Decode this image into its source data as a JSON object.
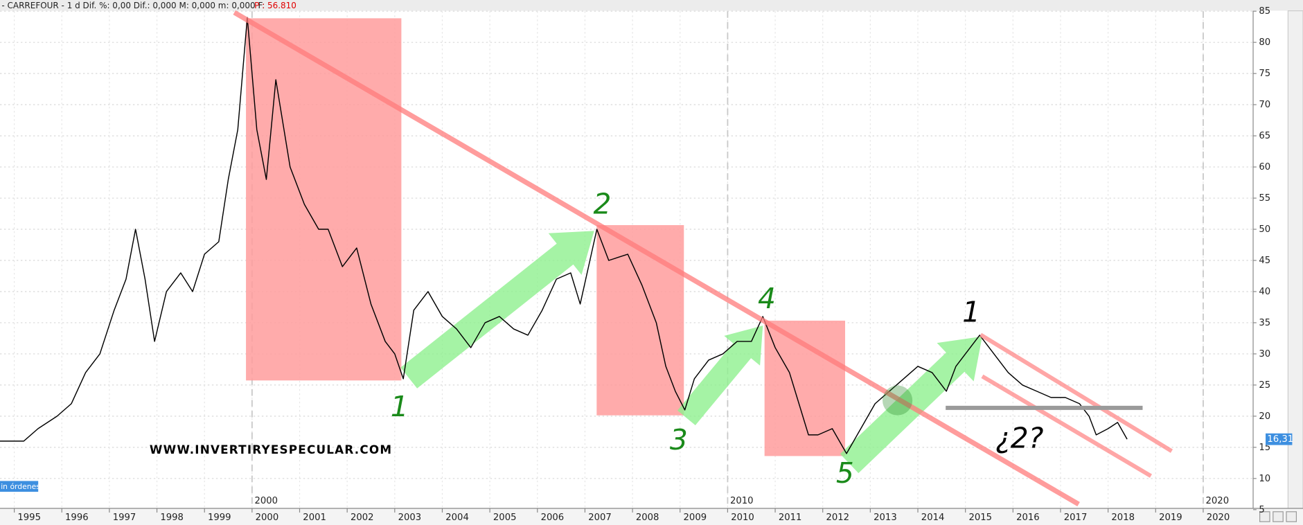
{
  "chart_data": {
    "type": "line",
    "header": "- CARREFOUR -  1 d  Dif. %: 0,00  Dif.: 0,000  M: 0,000  m: 0,000  F:",
    "header_price": "P : 56.810",
    "watermark": "WWW.INVERTIRYESPECULAR.COM",
    "status_label": "in órdenes",
    "last_price_label": "16,31",
    "annotations": [
      "1",
      "2",
      "3",
      "4",
      "5",
      "1",
      "¿2?"
    ],
    "color": "#000000",
    "x": [
      1994.7,
      1995.2,
      1995.5,
      1995.9,
      1996.2,
      1996.5,
      1996.8,
      1997.1,
      1997.35,
      1997.55,
      1997.75,
      1997.95,
      1998.2,
      1998.5,
      1998.75,
      1999.0,
      1999.3,
      1999.5,
      1999.7,
      1999.9,
      2000.1,
      2000.3,
      2000.5,
      2000.8,
      2001.1,
      2001.4,
      2001.6,
      2001.9,
      2002.2,
      2002.5,
      2002.8,
      2003.0,
      2003.18,
      2003.4,
      2003.7,
      2004.0,
      2004.3,
      2004.6,
      2004.9,
      2005.2,
      2005.5,
      2005.8,
      2006.1,
      2006.4,
      2006.7,
      2006.9,
      2007.25,
      2007.5,
      2007.9,
      2008.2,
      2008.5,
      2008.7,
      2008.9,
      2009.1,
      2009.3,
      2009.6,
      2009.9,
      2010.2,
      2010.5,
      2010.74,
      2011.0,
      2011.3,
      2011.5,
      2011.7,
      2011.9,
      2012.2,
      2012.5,
      2012.8,
      2013.1,
      2013.4,
      2013.7,
      2014.0,
      2014.3,
      2014.6,
      2014.8,
      2015.0,
      2015.3,
      2015.6,
      2015.9,
      2016.2,
      2016.5,
      2016.8,
      2017.1,
      2017.4,
      2017.6,
      2017.75,
      2018.0,
      2018.2,
      2018.4
    ],
    "values": [
      16,
      16,
      18,
      20,
      22,
      27,
      30,
      37,
      42,
      50,
      42,
      32,
      40,
      43,
      40,
      46,
      48,
      58,
      66,
      84,
      66,
      58,
      74,
      60,
      54,
      50,
      50,
      44,
      47,
      38,
      32,
      30,
      26,
      37,
      40,
      36,
      34,
      31,
      35,
      36,
      34,
      33,
      37,
      42,
      43,
      38,
      50,
      45,
      46,
      41,
      35,
      28,
      24,
      21,
      26,
      29,
      30,
      32,
      32,
      36,
      31,
      27,
      22,
      17,
      17,
      18,
      14,
      18,
      22,
      24,
      26,
      28,
      27,
      24,
      28,
      30,
      33,
      30,
      27,
      25,
      24,
      23,
      23,
      22,
      20,
      17,
      18,
      19,
      16.3
    ],
    "xlim": [
      1994.7,
      2021.05
    ],
    "ylim": [
      5,
      85
    ],
    "yticks": [
      5,
      10,
      15,
      20,
      25,
      30,
      35,
      40,
      45,
      50,
      55,
      60,
      65,
      70,
      75,
      80,
      85
    ],
    "xticks": [
      1995,
      1996,
      1997,
      1998,
      1999,
      2000,
      2001,
      2002,
      2003,
      2004,
      2005,
      2006,
      2007,
      2008,
      2009,
      2010,
      2011,
      2012,
      2013,
      2014,
      2015,
      2016,
      2017,
      2018,
      2019,
      2020
    ],
    "decade_ticks": [
      2000,
      2010,
      2020
    ],
    "grid": true
  }
}
